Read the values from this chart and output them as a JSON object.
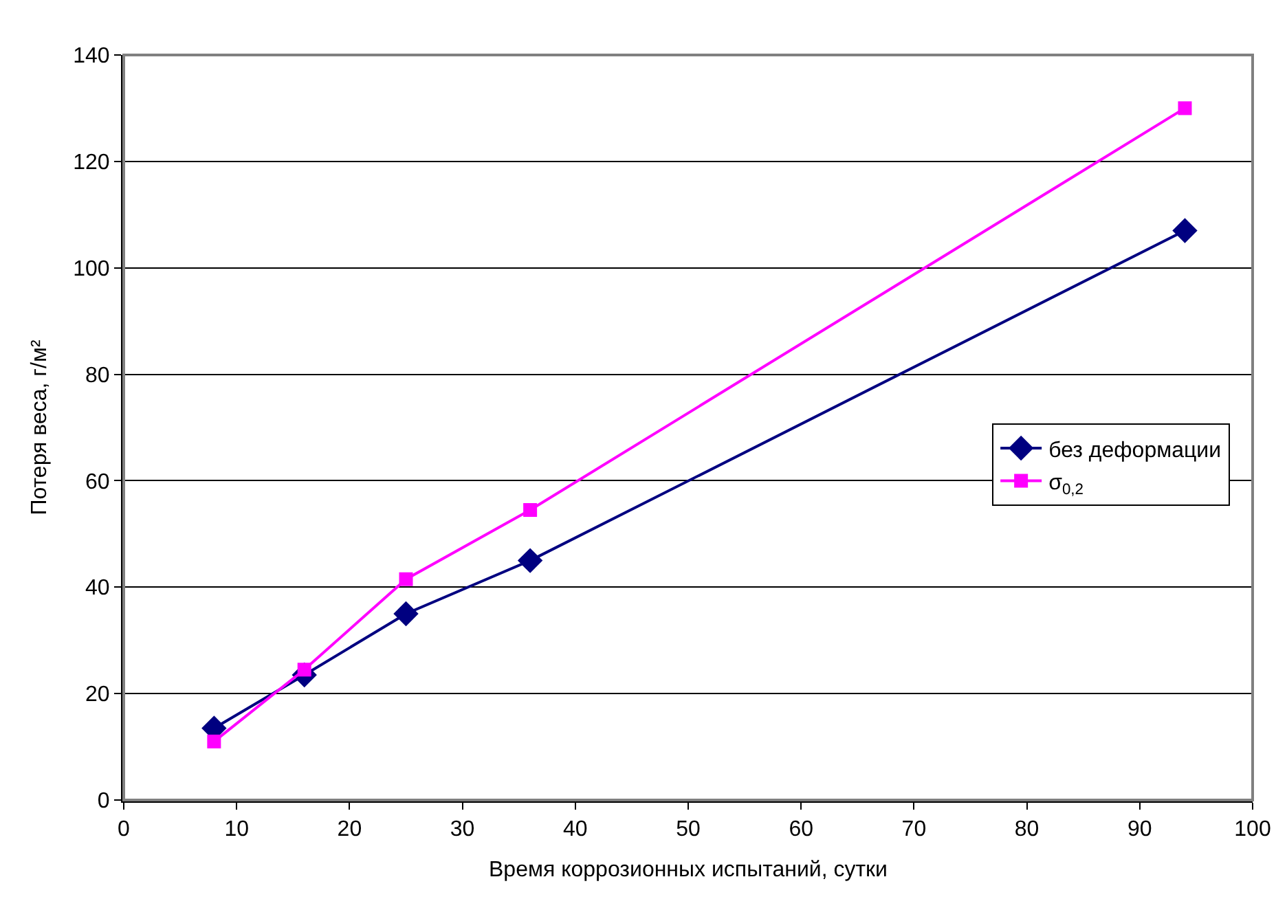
{
  "chart_data": {
    "type": "line",
    "xlabel": "Время коррозионных испытаний, сутки",
    "ylabel": "Потеря веса, г/м²",
    "x": [
      8,
      16,
      25,
      36,
      94
    ],
    "series": [
      {
        "name": "без деформации",
        "color": "#000080",
        "marker": "diamond",
        "values": [
          13.5,
          23.5,
          35,
          45,
          107
        ]
      },
      {
        "name": "σ$_{0,2}$",
        "color": "#ff00ff",
        "marker": "square",
        "values": [
          11,
          24.5,
          41.5,
          54.5,
          130
        ]
      }
    ],
    "xlim": [
      0,
      100
    ],
    "xticks": [
      0,
      10,
      20,
      30,
      40,
      50,
      60,
      70,
      80,
      90,
      100
    ],
    "ylim": [
      0,
      140
    ],
    "yticks": [
      0,
      20,
      40,
      60,
      80,
      100,
      120,
      140
    ],
    "grid": "y",
    "legend": "right",
    "line_style": "solid"
  }
}
